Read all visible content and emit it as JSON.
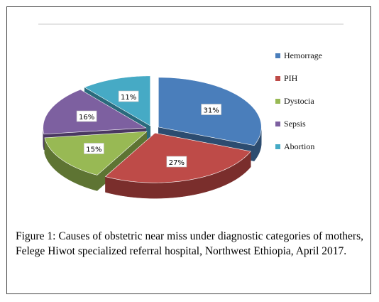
{
  "chart_data": {
    "type": "pie",
    "style": "3d-exploded",
    "slices": [
      {
        "label": "Hemorrage",
        "value": 31,
        "display": "31%",
        "color": "#4A7EBB",
        "side": "#2C4C70"
      },
      {
        "label": "PIH",
        "value": 27,
        "display": "27%",
        "color": "#BE4B48",
        "side": "#7A2E2C"
      },
      {
        "label": "Dystocia",
        "value": 15,
        "display": "15%",
        "color": "#98B954",
        "side": "#5E7433"
      },
      {
        "label": "Sepsis",
        "value": 16,
        "display": "16%",
        "color": "#7D60A0",
        "side": "#4A3862"
      },
      {
        "label": "Abortion",
        "value": 11,
        "display": "11%",
        "color": "#46AAC5",
        "side": "#2A6A7C"
      }
    ],
    "legend_position": "right"
  },
  "caption": {
    "text": "Figure 1: Causes of obstetric near miss under diagnostic categories of mothers, Felege Hiwot specialized referral hospital, Northwest Ethiopia, April 2017."
  }
}
